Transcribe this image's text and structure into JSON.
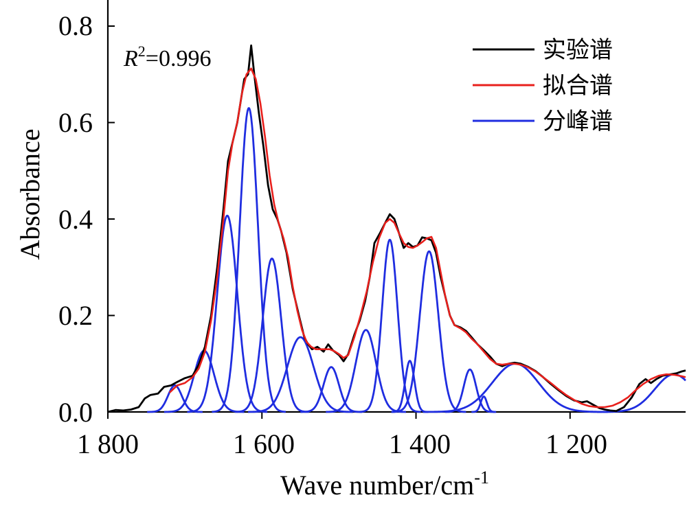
{
  "chart_data": {
    "type": "line",
    "xlabel": "Wave number/cm",
    "xlabel_sup": "-1",
    "ylabel": "Absorbance",
    "xlim": [
      1800,
      1050
    ],
    "ylim": [
      0,
      0.8
    ],
    "x_ticks": [
      1800,
      1600,
      1400,
      1200
    ],
    "x_tick_labels": [
      "1 800",
      "1 600",
      "1 400",
      "1 200"
    ],
    "y_ticks": [
      0,
      0.2,
      0.4,
      0.6,
      0.8
    ],
    "y_tick_labels": [
      "0.0",
      "0.2",
      "0.4",
      "0.6",
      "0.8"
    ],
    "annotation": {
      "r": "R",
      "sup": "2",
      "value": "=0.996"
    },
    "legend": {
      "placement": "top-right",
      "entries": [
        {
          "label": "实验谱",
          "color": "#000000"
        },
        {
          "label": "拟合谱",
          "color": "#e8201c"
        },
        {
          "label": "分峰谱",
          "color": "#1f2de0"
        }
      ]
    },
    "series": [
      {
        "name": "实验谱",
        "color": "#000000",
        "points": [
          [
            1800,
            0.0
          ],
          [
            1790,
            0.004
          ],
          [
            1780,
            0.003
          ],
          [
            1770,
            0.005
          ],
          [
            1760,
            0.01
          ],
          [
            1752,
            0.028
          ],
          [
            1745,
            0.035
          ],
          [
            1735,
            0.038
          ],
          [
            1727,
            0.052
          ],
          [
            1718,
            0.055
          ],
          [
            1710,
            0.062
          ],
          [
            1700,
            0.07
          ],
          [
            1690,
            0.075
          ],
          [
            1682,
            0.098
          ],
          [
            1674,
            0.135
          ],
          [
            1666,
            0.2
          ],
          [
            1658,
            0.3
          ],
          [
            1650,
            0.42
          ],
          [
            1644,
            0.52
          ],
          [
            1638,
            0.56
          ],
          [
            1632,
            0.6
          ],
          [
            1628,
            0.64
          ],
          [
            1623,
            0.69
          ],
          [
            1618,
            0.7
          ],
          [
            1614,
            0.76
          ],
          [
            1610,
            0.7
          ],
          [
            1604,
            0.62
          ],
          [
            1598,
            0.55
          ],
          [
            1592,
            0.47
          ],
          [
            1586,
            0.42
          ],
          [
            1580,
            0.4
          ],
          [
            1575,
            0.375
          ],
          [
            1568,
            0.33
          ],
          [
            1560,
            0.255
          ],
          [
            1552,
            0.2
          ],
          [
            1545,
            0.155
          ],
          [
            1540,
            0.14
          ],
          [
            1535,
            0.13
          ],
          [
            1528,
            0.135
          ],
          [
            1520,
            0.125
          ],
          [
            1514,
            0.14
          ],
          [
            1508,
            0.128
          ],
          [
            1500,
            0.118
          ],
          [
            1494,
            0.105
          ],
          [
            1488,
            0.12
          ],
          [
            1480,
            0.16
          ],
          [
            1473,
            0.19
          ],
          [
            1466,
            0.23
          ],
          [
            1460,
            0.28
          ],
          [
            1454,
            0.35
          ],
          [
            1447,
            0.37
          ],
          [
            1440,
            0.392
          ],
          [
            1434,
            0.41
          ],
          [
            1428,
            0.4
          ],
          [
            1422,
            0.37
          ],
          [
            1416,
            0.34
          ],
          [
            1410,
            0.35
          ],
          [
            1404,
            0.342
          ],
          [
            1398,
            0.345
          ],
          [
            1392,
            0.362
          ],
          [
            1386,
            0.36
          ],
          [
            1380,
            0.356
          ],
          [
            1374,
            0.33
          ],
          [
            1368,
            0.28
          ],
          [
            1362,
            0.24
          ],
          [
            1356,
            0.2
          ],
          [
            1350,
            0.18
          ],
          [
            1342,
            0.175
          ],
          [
            1335,
            0.168
          ],
          [
            1328,
            0.155
          ],
          [
            1320,
            0.14
          ],
          [
            1312,
            0.128
          ],
          [
            1304,
            0.115
          ],
          [
            1296,
            0.1
          ],
          [
            1288,
            0.095
          ],
          [
            1280,
            0.1
          ],
          [
            1272,
            0.102
          ],
          [
            1264,
            0.1
          ],
          [
            1255,
            0.094
          ],
          [
            1245,
            0.085
          ],
          [
            1235,
            0.072
          ],
          [
            1225,
            0.058
          ],
          [
            1215,
            0.045
          ],
          [
            1205,
            0.033
          ],
          [
            1195,
            0.024
          ],
          [
            1185,
            0.02
          ],
          [
            1178,
            0.022
          ],
          [
            1170,
            0.015
          ],
          [
            1162,
            0.008
          ],
          [
            1155,
            0.005
          ],
          [
            1148,
            0.003
          ],
          [
            1140,
            0.002
          ],
          [
            1130,
            0.01
          ],
          [
            1120,
            0.03
          ],
          [
            1110,
            0.058
          ],
          [
            1102,
            0.068
          ],
          [
            1095,
            0.06
          ],
          [
            1088,
            0.068
          ],
          [
            1080,
            0.075
          ],
          [
            1070,
            0.078
          ],
          [
            1062,
            0.08
          ],
          [
            1055,
            0.084
          ],
          [
            1050,
            0.086
          ]
        ]
      },
      {
        "name": "拟合谱",
        "color": "#e8201c",
        "points": [
          [
            1720,
            0.04
          ],
          [
            1710,
            0.055
          ],
          [
            1700,
            0.06
          ],
          [
            1690,
            0.072
          ],
          [
            1682,
            0.09
          ],
          [
            1674,
            0.125
          ],
          [
            1666,
            0.19
          ],
          [
            1658,
            0.28
          ],
          [
            1650,
            0.4
          ],
          [
            1644,
            0.5
          ],
          [
            1638,
            0.56
          ],
          [
            1632,
            0.6
          ],
          [
            1626,
            0.66
          ],
          [
            1620,
            0.7
          ],
          [
            1614,
            0.712
          ],
          [
            1608,
            0.69
          ],
          [
            1602,
            0.64
          ],
          [
            1596,
            0.57
          ],
          [
            1590,
            0.49
          ],
          [
            1584,
            0.43
          ],
          [
            1578,
            0.39
          ],
          [
            1572,
            0.36
          ],
          [
            1566,
            0.32
          ],
          [
            1560,
            0.26
          ],
          [
            1554,
            0.21
          ],
          [
            1548,
            0.17
          ],
          [
            1542,
            0.145
          ],
          [
            1536,
            0.135
          ],
          [
            1530,
            0.13
          ],
          [
            1524,
            0.13
          ],
          [
            1518,
            0.13
          ],
          [
            1512,
            0.13
          ],
          [
            1506,
            0.126
          ],
          [
            1500,
            0.12
          ],
          [
            1494,
            0.112
          ],
          [
            1488,
            0.118
          ],
          [
            1480,
            0.155
          ],
          [
            1472,
            0.2
          ],
          [
            1464,
            0.25
          ],
          [
            1456,
            0.31
          ],
          [
            1448,
            0.36
          ],
          [
            1440,
            0.392
          ],
          [
            1434,
            0.4
          ],
          [
            1428,
            0.392
          ],
          [
            1422,
            0.37
          ],
          [
            1416,
            0.35
          ],
          [
            1410,
            0.342
          ],
          [
            1404,
            0.34
          ],
          [
            1398,
            0.345
          ],
          [
            1392,
            0.352
          ],
          [
            1386,
            0.36
          ],
          [
            1380,
            0.363
          ],
          [
            1374,
            0.34
          ],
          [
            1368,
            0.29
          ],
          [
            1362,
            0.24
          ],
          [
            1356,
            0.2
          ],
          [
            1350,
            0.18
          ],
          [
            1342,
            0.173
          ],
          [
            1335,
            0.165
          ],
          [
            1328,
            0.152
          ],
          [
            1320,
            0.14
          ],
          [
            1312,
            0.125
          ],
          [
            1304,
            0.11
          ],
          [
            1296,
            0.1
          ],
          [
            1288,
            0.098
          ],
          [
            1280,
            0.1
          ],
          [
            1272,
            0.1
          ],
          [
            1264,
            0.098
          ],
          [
            1255,
            0.093
          ],
          [
            1245,
            0.084
          ],
          [
            1235,
            0.072
          ],
          [
            1225,
            0.06
          ],
          [
            1215,
            0.047
          ],
          [
            1205,
            0.035
          ],
          [
            1195,
            0.025
          ],
          [
            1185,
            0.017
          ],
          [
            1175,
            0.012
          ],
          [
            1165,
            0.01
          ],
          [
            1155,
            0.01
          ],
          [
            1145,
            0.013
          ],
          [
            1135,
            0.02
          ],
          [
            1125,
            0.03
          ],
          [
            1115,
            0.045
          ],
          [
            1105,
            0.058
          ],
          [
            1095,
            0.068
          ],
          [
            1085,
            0.075
          ],
          [
            1075,
            0.078
          ],
          [
            1065,
            0.077
          ],
          [
            1055,
            0.074
          ],
          [
            1050,
            0.072
          ]
        ]
      },
      {
        "name": "分峰谱",
        "color": "#1f2de0",
        "peaks": [
          {
            "center": 1713,
            "height": 0.055
          },
          {
            "center": 1675,
            "height": 0.127
          },
          {
            "center": 1645,
            "height": 0.407
          },
          {
            "center": 1617,
            "height": 0.63
          },
          {
            "center": 1587,
            "height": 0.318
          },
          {
            "center": 1550,
            "height": 0.155
          },
          {
            "center": 1510,
            "height": 0.093
          },
          {
            "center": 1465,
            "height": 0.17
          },
          {
            "center": 1434,
            "height": 0.357
          },
          {
            "center": 1408,
            "height": 0.106
          },
          {
            "center": 1383,
            "height": 0.333
          },
          {
            "center": 1330,
            "height": 0.088
          },
          {
            "center": 1312,
            "height": 0.032
          },
          {
            "center": 1271,
            "height": 0.1
          },
          {
            "center": 1065,
            "height": 0.078
          }
        ]
      }
    ]
  }
}
